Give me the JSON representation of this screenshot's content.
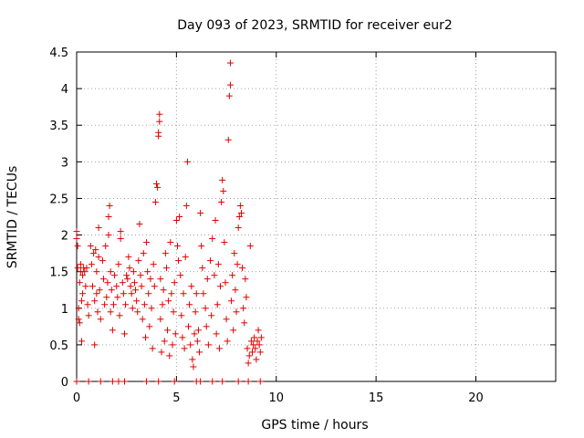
{
  "chart_data": {
    "type": "scatter",
    "title": "Day 093 of 2023, SRMTID for receiver eur2",
    "xlabel": "GPS time / hours",
    "ylabel": "SRMTID / TECUs",
    "xlim": [
      0,
      24
    ],
    "ylim": [
      0,
      4.5
    ],
    "xticks": [
      0,
      5,
      10,
      15,
      20
    ],
    "yticks": [
      0,
      0.5,
      1,
      1.5,
      2,
      2.5,
      3,
      3.5,
      4,
      4.5
    ],
    "xtick_labels": [
      "0",
      "5",
      "10",
      "15",
      "20"
    ],
    "ytick_labels": [
      "0",
      "0.5",
      "1",
      "1.5",
      "2",
      "2.5",
      "3",
      "3.5",
      "4",
      "4.5"
    ],
    "grid": true,
    "marker": "plus",
    "color": "#e00000",
    "series": [
      {
        "name": "SRMTID",
        "points": [
          [
            0.0,
            2.05
          ],
          [
            0.0,
            1.95
          ],
          [
            0.05,
            1.85
          ],
          [
            0.05,
            1.55
          ],
          [
            0.1,
            1.0
          ],
          [
            0.1,
            0.85
          ],
          [
            0.15,
            1.35
          ],
          [
            0.15,
            0.8
          ],
          [
            0.2,
            1.6
          ],
          [
            0.2,
            1.5
          ],
          [
            0.25,
            1.1
          ],
          [
            0.25,
            0.55
          ],
          [
            0.3,
            1.45
          ],
          [
            0.3,
            1.2
          ],
          [
            0.35,
            1.55
          ],
          [
            0.4,
            1.5
          ],
          [
            0.45,
            1.3
          ],
          [
            0.5,
            1.55
          ],
          [
            0.55,
            1.05
          ],
          [
            0.6,
            0.9
          ],
          [
            0.7,
            1.85
          ],
          [
            0.75,
            1.6
          ],
          [
            0.8,
            1.3
          ],
          [
            0.85,
            1.75
          ],
          [
            0.9,
            1.1
          ],
          [
            0.9,
            0.5
          ],
          [
            0.95,
            1.8
          ],
          [
            1.0,
            1.5
          ],
          [
            1.0,
            1.2
          ],
          [
            1.05,
            0.95
          ],
          [
            1.1,
            1.7
          ],
          [
            1.1,
            2.1
          ],
          [
            1.15,
            1.25
          ],
          [
            1.2,
            0.85
          ],
          [
            1.3,
            1.65
          ],
          [
            1.35,
            1.4
          ],
          [
            1.4,
            1.05
          ],
          [
            1.45,
            1.85
          ],
          [
            1.5,
            1.15
          ],
          [
            1.55,
            1.35
          ],
          [
            1.6,
            2.25
          ],
          [
            1.6,
            2.0
          ],
          [
            1.65,
            2.4
          ],
          [
            1.7,
            1.5
          ],
          [
            1.7,
            0.95
          ],
          [
            1.75,
            1.25
          ],
          [
            1.8,
            0.7
          ],
          [
            1.85,
            1.05
          ],
          [
            1.9,
            1.45
          ],
          [
            2.0,
            1.3
          ],
          [
            2.05,
            1.15
          ],
          [
            2.1,
            1.6
          ],
          [
            2.15,
            0.9
          ],
          [
            2.2,
            2.05
          ],
          [
            2.2,
            1.95
          ],
          [
            2.3,
            1.35
          ],
          [
            2.35,
            1.2
          ],
          [
            2.4,
            0.65
          ],
          [
            2.45,
            1.05
          ],
          [
            2.5,
            1.45
          ],
          [
            2.55,
            1.4
          ],
          [
            2.6,
            1.7
          ],
          [
            2.65,
            1.55
          ],
          [
            2.7,
            1.3
          ],
          [
            2.75,
            1.2
          ],
          [
            2.8,
            1.0
          ],
          [
            2.85,
            1.5
          ],
          [
            2.9,
            1.35
          ],
          [
            2.95,
            1.25
          ],
          [
            3.0,
            1.1
          ],
          [
            3.05,
            0.95
          ],
          [
            3.1,
            1.65
          ],
          [
            3.15,
            2.15
          ],
          [
            3.2,
            1.45
          ],
          [
            3.25,
            1.3
          ],
          [
            3.3,
            0.85
          ],
          [
            3.35,
            1.75
          ],
          [
            3.4,
            1.05
          ],
          [
            3.45,
            0.6
          ],
          [
            3.5,
            1.9
          ],
          [
            3.55,
            1.5
          ],
          [
            3.6,
            1.2
          ],
          [
            3.65,
            0.75
          ],
          [
            3.7,
            1.4
          ],
          [
            3.75,
            1.0
          ],
          [
            3.8,
            0.45
          ],
          [
            3.85,
            1.6
          ],
          [
            3.9,
            1.3
          ],
          [
            3.95,
            2.45
          ],
          [
            4.0,
            2.7
          ],
          [
            4.05,
            2.65
          ],
          [
            4.1,
            3.35
          ],
          [
            4.1,
            3.4
          ],
          [
            4.15,
            3.55
          ],
          [
            4.15,
            3.65
          ],
          [
            4.2,
            1.4
          ],
          [
            4.2,
            0.85
          ],
          [
            4.25,
            0.4
          ],
          [
            4.3,
            1.05
          ],
          [
            4.35,
            1.25
          ],
          [
            4.4,
            0.55
          ],
          [
            4.45,
            1.75
          ],
          [
            4.5,
            1.55
          ],
          [
            4.55,
            0.7
          ],
          [
            4.6,
            1.1
          ],
          [
            4.65,
            0.35
          ],
          [
            4.7,
            1.9
          ],
          [
            4.75,
            1.2
          ],
          [
            4.8,
            0.5
          ],
          [
            4.85,
            0.95
          ],
          [
            4.9,
            1.35
          ],
          [
            4.95,
            0.65
          ],
          [
            5.0,
            2.2
          ],
          [
            5.05,
            1.85
          ],
          [
            5.1,
            1.65
          ],
          [
            5.15,
            2.25
          ],
          [
            5.2,
            1.45
          ],
          [
            5.25,
            0.9
          ],
          [
            5.3,
            0.6
          ],
          [
            5.35,
            1.2
          ],
          [
            5.4,
            0.45
          ],
          [
            5.45,
            1.7
          ],
          [
            5.5,
            2.4
          ],
          [
            5.55,
            3.0
          ],
          [
            5.6,
            0.75
          ],
          [
            5.65,
            1.05
          ],
          [
            5.7,
            0.5
          ],
          [
            5.75,
            1.3
          ],
          [
            5.8,
            0.3
          ],
          [
            5.85,
            0.2
          ],
          [
            5.9,
            0.65
          ],
          [
            5.95,
            0.95
          ],
          [
            6.0,
            1.2
          ],
          [
            6.05,
            0.55
          ],
          [
            6.1,
            0.7
          ],
          [
            6.15,
            0.4
          ],
          [
            6.2,
            2.3
          ],
          [
            6.25,
            1.85
          ],
          [
            6.3,
            1.55
          ],
          [
            6.35,
            1.2
          ],
          [
            6.45,
            1.0
          ],
          [
            6.5,
            0.75
          ],
          [
            6.55,
            1.4
          ],
          [
            6.6,
            0.5
          ],
          [
            6.7,
            1.65
          ],
          [
            6.75,
            0.9
          ],
          [
            6.8,
            1.95
          ],
          [
            6.9,
            1.45
          ],
          [
            6.95,
            2.2
          ],
          [
            7.0,
            0.65
          ],
          [
            7.05,
            1.05
          ],
          [
            7.1,
            1.6
          ],
          [
            7.15,
            0.45
          ],
          [
            7.2,
            1.3
          ],
          [
            7.25,
            2.45
          ],
          [
            7.3,
            2.75
          ],
          [
            7.35,
            2.6
          ],
          [
            7.4,
            1.9
          ],
          [
            7.45,
            1.35
          ],
          [
            7.5,
            0.85
          ],
          [
            7.55,
            0.55
          ],
          [
            7.6,
            3.3
          ],
          [
            7.65,
            3.9
          ],
          [
            7.7,
            4.05
          ],
          [
            7.7,
            4.35
          ],
          [
            7.75,
            1.1
          ],
          [
            7.8,
            1.45
          ],
          [
            7.85,
            0.7
          ],
          [
            7.9,
            1.75
          ],
          [
            7.95,
            1.25
          ],
          [
            8.0,
            0.95
          ],
          [
            8.05,
            1.6
          ],
          [
            8.1,
            2.1
          ],
          [
            8.15,
            2.25
          ],
          [
            8.2,
            2.4
          ],
          [
            8.25,
            2.3
          ],
          [
            8.3,
            1.55
          ],
          [
            8.35,
            1.0
          ],
          [
            8.4,
            0.8
          ],
          [
            8.45,
            1.4
          ],
          [
            8.5,
            1.15
          ],
          [
            8.55,
            0.45
          ],
          [
            8.6,
            0.25
          ],
          [
            8.65,
            0.35
          ],
          [
            8.7,
            1.85
          ],
          [
            8.75,
            0.55
          ],
          [
            8.8,
            0.4
          ],
          [
            8.85,
            0.5
          ],
          [
            8.9,
            0.6
          ],
          [
            8.95,
            0.45
          ],
          [
            9.0,
            0.3
          ],
          [
            9.05,
            0.55
          ],
          [
            9.1,
            0.7
          ],
          [
            9.15,
            0.5
          ],
          [
            9.2,
            0.4
          ],
          [
            9.25,
            0.6
          ],
          [
            0.0,
            0.0
          ],
          [
            0.6,
            0.0
          ],
          [
            1.2,
            0.0
          ],
          [
            1.8,
            0.0
          ],
          [
            2.1,
            0.0
          ],
          [
            2.4,
            0.0
          ],
          [
            3.5,
            0.0
          ],
          [
            4.1,
            0.0
          ],
          [
            4.9,
            0.0
          ],
          [
            6.0,
            0.0
          ],
          [
            6.2,
            0.0
          ],
          [
            6.8,
            0.0
          ],
          [
            7.3,
            0.0
          ],
          [
            8.1,
            0.0
          ],
          [
            8.6,
            0.0
          ],
          [
            9.2,
            0.0
          ]
        ]
      }
    ]
  }
}
